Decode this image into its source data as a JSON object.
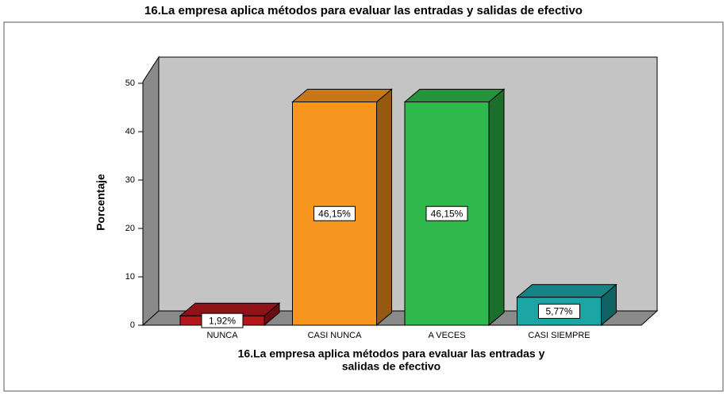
{
  "chart_data": {
    "type": "bar3d",
    "title": "16.La empresa aplica métodos para evaluar las entradas y salidas de efectivo",
    "xlabel": [
      "16.La empresa aplica métodos para evaluar las entradas y",
      "salidas de efectivo"
    ],
    "ylabel": "Porcentaje",
    "categories": [
      "NUNCA",
      "CASI NUNCA",
      "A VECES",
      "CASI SIEMPRE"
    ],
    "values": [
      1.92,
      46.15,
      46.15,
      5.77
    ],
    "value_labels": [
      "1,92%",
      "46,15%",
      "46,15%",
      "5,77%"
    ],
    "colors": [
      "#b3161b",
      "#f7961e",
      "#2fb84b",
      "#1ba5a5"
    ],
    "ylim": [
      0,
      50
    ],
    "yticks": [
      0,
      10,
      20,
      30,
      40,
      50
    ]
  }
}
